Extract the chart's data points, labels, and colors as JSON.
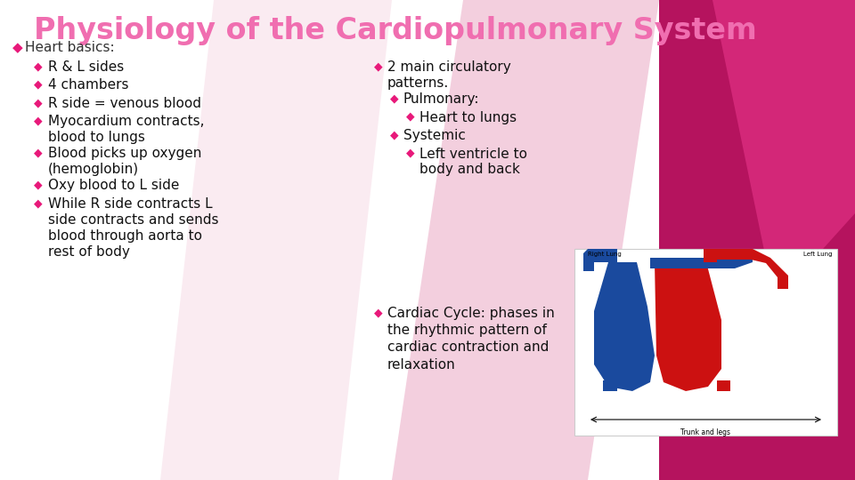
{
  "title": "Physiology of the Cardiopulmonary System",
  "subtitle_bullet": "◆",
  "subtitle": "Heart basics:",
  "title_color": "#F06EB0",
  "subtitle_color": "#333333",
  "bullet_color": "#E8197A",
  "bg_color_main": "#FFFFFF",
  "left_bullets": [
    {
      "text": "R & L sides",
      "level": 1
    },
    {
      "text": "4 chambers",
      "level": 1
    },
    {
      "text": "R side = venous blood",
      "level": 1
    },
    {
      "text": "Myocardium contracts,\nblood to lungs",
      "level": 1
    },
    {
      "text": "Blood picks up oxygen\n(hemoglobin)",
      "level": 1
    },
    {
      "text": "Oxy blood to L side",
      "level": 1
    },
    {
      "text": "While R side contracts L\nside contracts and sends\nblood through aorta to\nrest of body",
      "level": 1
    }
  ],
  "mid_bullets": [
    {
      "text": "2 main circulatory\npatterns.",
      "level": 0
    },
    {
      "text": "Pulmonary:",
      "level": 1
    },
    {
      "text": "Heart to lungs",
      "level": 2
    },
    {
      "text": "Systemic",
      "level": 1
    },
    {
      "text": "Left ventricle to\nbody and back",
      "level": 2
    }
  ],
  "bottom_bullets": [
    {
      "text": "Cardiac Cycle: phases in\nthe rhythmic pattern of\ncardiac contraction and\nrelaxation",
      "level": 0
    }
  ],
  "font_size_title": 24,
  "font_size_subtitle": 11,
  "font_size_l1": 11,
  "font_size_l2": 11,
  "diamond": "◆",
  "figsize": [
    9.6,
    5.4
  ]
}
